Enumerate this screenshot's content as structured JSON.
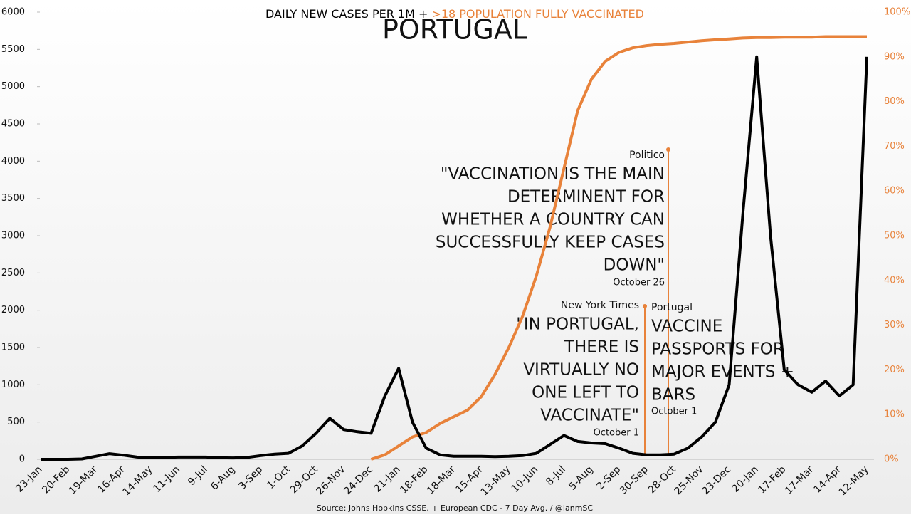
{
  "chart_data": {
    "type": "line",
    "title": "PORTUGAL",
    "source": "Source: Johns Hopkins CSSE. + European CDC - 7 Day Avg. /  @ianmSC",
    "categories": [
      "23-Jan",
      null,
      "20-Feb",
      null,
      "19-Mar",
      null,
      "16-Apr",
      null,
      "14-May",
      null,
      "11-Jun",
      null,
      "9-Jul",
      null,
      "6-Aug",
      null,
      "3-Sep",
      null,
      "1-Oct",
      null,
      "29-Oct",
      null,
      "26-Nov",
      null,
      "24-Dec",
      null,
      "21-Jan",
      null,
      "18-Feb",
      null,
      "18-Mar",
      null,
      "15-Apr",
      null,
      "13-May",
      null,
      "10-Jun",
      null,
      "8-Jul",
      null,
      "5-Aug",
      null,
      "2-Sep",
      null,
      "30-Sep",
      null,
      "28-Oct",
      null,
      "25-Nov",
      null,
      "23-Dec",
      null,
      "20-Jan",
      null,
      "17-Feb",
      null,
      "17-Mar",
      null,
      "14-Apr",
      null,
      "12-May"
    ],
    "series": [
      {
        "name": "DAILY NEW CASES PER 1M +",
        "color": "#000000",
        "values": [
          0,
          0,
          0,
          5,
          40,
          75,
          55,
          30,
          20,
          25,
          30,
          30,
          30,
          20,
          18,
          25,
          50,
          70,
          80,
          180,
          350,
          550,
          400,
          370,
          350,
          850,
          1220,
          500,
          150,
          60,
          40,
          40,
          40,
          35,
          40,
          50,
          80,
          200,
          320,
          240,
          220,
          210,
          150,
          80,
          60,
          60,
          70,
          150,
          300,
          500,
          1000,
          3300,
          5400,
          3000,
          1200,
          1000,
          900,
          1050,
          850,
          1000,
          5400
        ]
      },
      {
        "name": ">18 POPULATION FULLY VACCINATED",
        "color": "#e8823a",
        "axis": "y2",
        "values": [
          null,
          null,
          null,
          null,
          null,
          null,
          null,
          null,
          null,
          null,
          null,
          null,
          null,
          null,
          null,
          null,
          null,
          null,
          null,
          null,
          null,
          null,
          null,
          null,
          0,
          1,
          3,
          5,
          6,
          8,
          9.5,
          11,
          14,
          19,
          25,
          32,
          41,
          52,
          65,
          78,
          85,
          89,
          91,
          92,
          92.5,
          92.8,
          93,
          93.3,
          93.6,
          93.8,
          94,
          94.2,
          94.3,
          94.3,
          94.4,
          94.4,
          94.4,
          94.5,
          94.5,
          94.5,
          94.5
        ]
      }
    ],
    "ylim": [
      0,
      6000
    ],
    "yticks": [
      0,
      500,
      1000,
      1500,
      2000,
      2500,
      3000,
      3500,
      4000,
      4500,
      5000,
      5500,
      6000
    ],
    "y2lim": [
      0,
      100
    ],
    "y2ticks": [
      {
        "value": 0,
        "label": "0%"
      },
      {
        "value": 10,
        "label": "10%"
      },
      {
        "value": 20,
        "label": "20%"
      },
      {
        "value": 30,
        "label": "30%"
      },
      {
        "value": 40,
        "label": "40%"
      },
      {
        "value": 50,
        "label": "50%"
      },
      {
        "value": 60,
        "label": "60%"
      },
      {
        "value": 70,
        "label": "70%"
      },
      {
        "value": 80,
        "label": "80%"
      },
      {
        "value": 90,
        "label": "90%"
      },
      {
        "value": 100,
        "label": "100%"
      }
    ],
    "annotations": [
      {
        "source": "Politico",
        "lines": [
          "\"VACCINATION IS THE MAIN",
          "DETERMINENT FOR",
          "WHETHER A COUNTRY CAN",
          "SUCCESSFULLY KEEP CASES",
          "DOWN\""
        ],
        "date": "October 26"
      },
      {
        "source": "New York Times",
        "lines": [
          "\"IN PORTUGAL,",
          "THERE IS",
          "VIRTUALLY NO",
          "ONE LEFT TO",
          "VACCINATE\""
        ],
        "date": "October 1"
      },
      {
        "source": "Portugal",
        "lines": [
          "VACCINE",
          "PASSPORTS FOR",
          "MAJOR EVENTS +",
          "BARS"
        ],
        "date": "October 1"
      }
    ]
  }
}
